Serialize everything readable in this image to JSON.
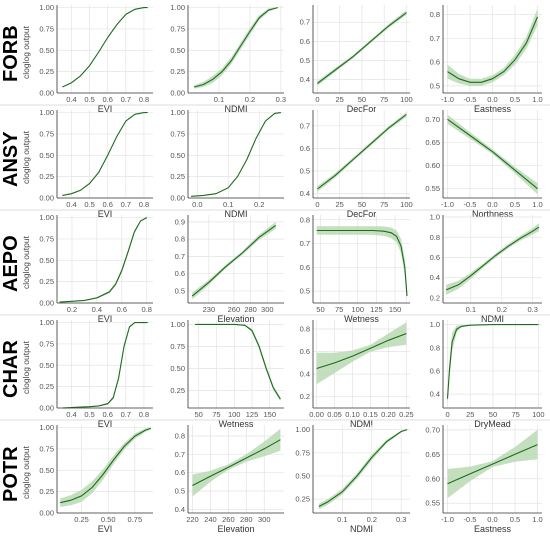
{
  "species": [
    "FORB",
    "ANSY",
    "AEPO",
    "CHAR",
    "POTR"
  ],
  "ylabel": "cloglog output",
  "colors": {
    "line": "#1f6b1f",
    "band": "#b9d9b3",
    "grid": "#e3e3e3",
    "axis": "#333333"
  },
  "chart_data": [
    {
      "type": "line",
      "xlabel": "EVI",
      "xticks": [
        0.4,
        0.5,
        0.6,
        0.7,
        0.8
      ],
      "xlim": [
        0.32,
        0.85
      ],
      "yticks": [
        0,
        0.25,
        0.5,
        0.75,
        1.0
      ],
      "ytick_labels": [
        "0.00",
        "0.25",
        "0.50",
        "0.75",
        "1.00"
      ],
      "ylim": [
        0,
        1.03
      ],
      "x": [
        0.35,
        0.4,
        0.45,
        0.5,
        0.55,
        0.6,
        0.65,
        0.7,
        0.75,
        0.8,
        0.82
      ],
      "y": [
        0.07,
        0.12,
        0.2,
        0.32,
        0.48,
        0.65,
        0.8,
        0.92,
        0.98,
        1.0,
        1.0
      ],
      "band": [
        0.005,
        0.01,
        0.01,
        0.01,
        0.01,
        0.01,
        0.01,
        0.01,
        0.005,
        0.002,
        0.002
      ]
    },
    {
      "type": "line",
      "xlabel": "NDMI",
      "xticks": [
        0.1,
        0.2,
        0.3
      ],
      "xlim": [
        0.0,
        0.31
      ],
      "yticks": [
        0,
        0.25,
        0.5,
        0.75,
        1.0
      ],
      "ytick_labels": [
        "0.00",
        "0.25",
        "0.50",
        "0.75",
        "1.00"
      ],
      "ylim": [
        0,
        1.03
      ],
      "x": [
        0.02,
        0.05,
        0.08,
        0.11,
        0.14,
        0.17,
        0.2,
        0.23,
        0.26,
        0.29
      ],
      "y": [
        0.07,
        0.1,
        0.16,
        0.25,
        0.38,
        0.55,
        0.72,
        0.88,
        0.97,
        1.0
      ],
      "band": [
        0.02,
        0.03,
        0.04,
        0.04,
        0.04,
        0.04,
        0.04,
        0.03,
        0.02,
        0.005
      ]
    },
    {
      "type": "line",
      "xlabel": "DecFor",
      "xticks": [
        0,
        25,
        50,
        75,
        100
      ],
      "xlim": [
        -5,
        104
      ],
      "yticks": [
        0.4,
        0.5,
        0.6,
        0.7
      ],
      "ytick_labels": [
        "0.4",
        "0.5",
        "0.6",
        "0.7"
      ],
      "ylim": [
        0.33,
        0.79
      ],
      "x": [
        0,
        20,
        40,
        60,
        80,
        100
      ],
      "y": [
        0.38,
        0.45,
        0.52,
        0.6,
        0.68,
        0.75
      ],
      "band": [
        0.012,
        0.01,
        0.008,
        0.008,
        0.01,
        0.012
      ]
    },
    {
      "type": "line",
      "xlabel": "Eastness",
      "xticks": [
        -1.0,
        -0.5,
        0.0,
        0.5,
        1.0
      ],
      "xlim": [
        -1.1,
        1.1
      ],
      "yticks": [
        0.5,
        0.6,
        0.7,
        0.8
      ],
      "ytick_labels": [
        "0.5",
        "0.6",
        "0.7",
        "0.8"
      ],
      "ylim": [
        0.47,
        0.84
      ],
      "x": [
        -1.0,
        -0.75,
        -0.5,
        -0.25,
        0.0,
        0.25,
        0.5,
        0.75,
        1.0
      ],
      "y": [
        0.56,
        0.53,
        0.515,
        0.515,
        0.53,
        0.56,
        0.61,
        0.68,
        0.79
      ],
      "band": [
        0.03,
        0.02,
        0.015,
        0.015,
        0.015,
        0.015,
        0.02,
        0.025,
        0.035
      ]
    },
    {
      "type": "line",
      "xlabel": "EVI",
      "xticks": [
        0.4,
        0.5,
        0.6,
        0.7,
        0.8
      ],
      "xlim": [
        0.32,
        0.85
      ],
      "yticks": [
        0,
        0.25,
        0.5,
        0.75,
        1.0
      ],
      "ytick_labels": [
        "0.00",
        "0.25",
        "0.50",
        "0.75",
        "1.00"
      ],
      "ylim": [
        0,
        1.03
      ],
      "x": [
        0.35,
        0.4,
        0.45,
        0.5,
        0.55,
        0.6,
        0.65,
        0.7,
        0.75,
        0.8,
        0.82
      ],
      "y": [
        0.03,
        0.05,
        0.09,
        0.17,
        0.3,
        0.5,
        0.72,
        0.9,
        0.98,
        1.0,
        1.0
      ],
      "band": [
        0.004,
        0.005,
        0.006,
        0.006,
        0.006,
        0.006,
        0.006,
        0.005,
        0.004,
        0.002,
        0.002
      ]
    },
    {
      "type": "line",
      "xlabel": "NDMI",
      "xticks": [
        0.0,
        0.1,
        0.2
      ],
      "xlim": [
        -0.03,
        0.28
      ],
      "yticks": [
        0,
        0.25,
        0.5,
        0.75,
        1.0
      ],
      "ytick_labels": [
        "0.00",
        "0.25",
        "0.50",
        "0.75",
        "1.00"
      ],
      "ylim": [
        0,
        1.03
      ],
      "x": [
        -0.02,
        0.02,
        0.06,
        0.1,
        0.13,
        0.16,
        0.19,
        0.22,
        0.25,
        0.27
      ],
      "y": [
        0.02,
        0.03,
        0.05,
        0.12,
        0.25,
        0.45,
        0.7,
        0.9,
        0.99,
        1.0
      ],
      "band": [
        0.003,
        0.004,
        0.005,
        0.006,
        0.006,
        0.006,
        0.006,
        0.005,
        0.003,
        0.002
      ]
    },
    {
      "type": "line",
      "xlabel": "DecFor",
      "xticks": [
        0,
        25,
        50,
        75,
        100
      ],
      "xlim": [
        -5,
        104
      ],
      "yticks": [
        0.4,
        0.5,
        0.6,
        0.7
      ],
      "ytick_labels": [
        "0.4",
        "0.5",
        "0.6",
        "0.7"
      ],
      "ylim": [
        0.38,
        0.77
      ],
      "x": [
        0,
        20,
        40,
        60,
        80,
        100
      ],
      "y": [
        0.42,
        0.48,
        0.55,
        0.62,
        0.69,
        0.75
      ],
      "band": [
        0.012,
        0.01,
        0.008,
        0.008,
        0.008,
        0.01
      ]
    },
    {
      "type": "line",
      "xlabel": "Northness",
      "xticks": [
        -1.0,
        -0.5,
        0.0,
        0.5,
        1.0
      ],
      "xlim": [
        -1.1,
        1.1
      ],
      "yticks": [
        0.55,
        0.6,
        0.65,
        0.7
      ],
      "ytick_labels": [
        "0.55",
        "0.60",
        "0.65",
        "0.70"
      ],
      "ylim": [
        0.53,
        0.72
      ],
      "x": [
        -1.0,
        -0.5,
        0.0,
        0.5,
        1.0
      ],
      "y": [
        0.7,
        0.665,
        0.63,
        0.59,
        0.55
      ],
      "band": [
        0.01,
        0.007,
        0.005,
        0.007,
        0.012
      ]
    },
    {
      "type": "line",
      "xlabel": "EVI",
      "xticks": [
        0.2,
        0.4,
        0.6,
        0.8
      ],
      "xlim": [
        0.08,
        0.85
      ],
      "yticks": [
        0,
        0.25,
        0.5,
        0.75,
        1.0
      ],
      "ytick_labels": [
        "0.00",
        "0.25",
        "0.50",
        "0.75",
        "1.00"
      ],
      "ylim": [
        0,
        1.03
      ],
      "x": [
        0.1,
        0.2,
        0.3,
        0.4,
        0.5,
        0.55,
        0.6,
        0.65,
        0.7,
        0.75,
        0.8
      ],
      "y": [
        0.01,
        0.02,
        0.03,
        0.06,
        0.13,
        0.22,
        0.38,
        0.6,
        0.83,
        0.96,
        1.0
      ],
      "band": [
        0.003,
        0.004,
        0.006,
        0.01,
        0.015,
        0.02,
        0.025,
        0.025,
        0.02,
        0.01,
        0.005
      ]
    },
    {
      "type": "line",
      "xlabel": "Elevation",
      "xticks": [
        230,
        260,
        280,
        300
      ],
      "xlim": [
        205,
        320
      ],
      "yticks": [
        0.5,
        0.6,
        0.7,
        0.8,
        0.9
      ],
      "ytick_labels": [
        "0.5",
        "0.6",
        "0.7",
        "0.8",
        "0.9"
      ],
      "ylim": [
        0.43,
        0.94
      ],
      "x": [
        210,
        230,
        250,
        270,
        290,
        310
      ],
      "y": [
        0.47,
        0.55,
        0.64,
        0.72,
        0.81,
        0.88
      ],
      "band": [
        0.02,
        0.015,
        0.01,
        0.01,
        0.015,
        0.02
      ]
    },
    {
      "type": "line",
      "xlabel": "Wetness",
      "xticks": [
        50,
        75,
        100,
        125,
        150
      ],
      "xlim": [
        40,
        170
      ],
      "yticks": [
        0.5,
        0.6,
        0.7,
        0.8
      ],
      "ytick_labels": [
        "0.5",
        "0.6",
        "0.7",
        "0.8"
      ],
      "ylim": [
        0.45,
        0.82
      ],
      "x": [
        45,
        60,
        80,
        100,
        120,
        135,
        145,
        152,
        158,
        163,
        166
      ],
      "y": [
        0.755,
        0.755,
        0.755,
        0.755,
        0.755,
        0.752,
        0.745,
        0.73,
        0.69,
        0.6,
        0.48
      ],
      "band": [
        0.018,
        0.018,
        0.018,
        0.018,
        0.018,
        0.02,
        0.022,
        0.025,
        0.03,
        0.035,
        0.04
      ]
    },
    {
      "type": "line",
      "xlabel": "NDMI",
      "xticks": [
        0.1,
        0.2,
        0.3
      ],
      "xlim": [
        0.01,
        0.33
      ],
      "yticks": [
        0.2,
        0.4,
        0.6,
        0.8,
        1.0
      ],
      "ytick_labels": [
        "0.2",
        "0.4",
        "0.6",
        "0.8",
        "1.0"
      ],
      "ylim": [
        0.15,
        1.02
      ],
      "x": [
        0.02,
        0.06,
        0.1,
        0.14,
        0.18,
        0.22,
        0.26,
        0.3,
        0.32
      ],
      "y": [
        0.28,
        0.33,
        0.42,
        0.52,
        0.62,
        0.71,
        0.79,
        0.86,
        0.9
      ],
      "band": [
        0.05,
        0.04,
        0.03,
        0.02,
        0.02,
        0.02,
        0.025,
        0.03,
        0.04
      ]
    },
    {
      "type": "line",
      "xlabel": "EVI",
      "xticks": [
        0.4,
        0.5,
        0.6,
        0.7,
        0.8
      ],
      "xlim": [
        0.32,
        0.85
      ],
      "yticks": [
        0,
        0.25,
        0.5,
        0.75,
        1.0
      ],
      "ytick_labels": [
        "0.00",
        "0.25",
        "0.50",
        "0.75",
        "1.00"
      ],
      "ylim": [
        0,
        1.03
      ],
      "x": [
        0.35,
        0.4,
        0.45,
        0.5,
        0.55,
        0.6,
        0.63,
        0.66,
        0.69,
        0.72,
        0.75,
        0.8,
        0.82
      ],
      "y": [
        0.0,
        0.005,
        0.01,
        0.015,
        0.025,
        0.05,
        0.12,
        0.35,
        0.72,
        0.95,
        1.0,
        1.0,
        1.0
      ],
      "band": [
        0.002,
        0.002,
        0.003,
        0.004,
        0.006,
        0.01,
        0.02,
        0.03,
        0.03,
        0.015,
        0.005,
        0.002,
        0.002
      ]
    },
    {
      "type": "line",
      "xlabel": "Wetness",
      "xticks": [
        50,
        75,
        100,
        125,
        150
      ],
      "xlim": [
        35,
        170
      ],
      "yticks": [
        0.25,
        0.5,
        0.75,
        1.0
      ],
      "ytick_labels": [
        "0.25",
        "0.50",
        "0.75",
        "1.00"
      ],
      "ylim": [
        0.05,
        1.05
      ],
      "x": [
        45,
        60,
        80,
        100,
        115,
        125,
        135,
        145,
        155,
        165
      ],
      "y": [
        1.0,
        1.0,
        1.0,
        1.0,
        0.99,
        0.93,
        0.75,
        0.5,
        0.28,
        0.15
      ],
      "band": [
        0.003,
        0.003,
        0.003,
        0.003,
        0.006,
        0.02,
        0.03,
        0.03,
        0.025,
        0.02
      ]
    },
    {
      "type": "line",
      "xlabel": "NDMI",
      "xticks": [
        0.0,
        0.05,
        0.1,
        0.15,
        0.2,
        0.25
      ],
      "xlim": [
        -0.01,
        0.26
      ],
      "yticks": [
        0.2,
        0.4,
        0.6,
        0.8
      ],
      "ytick_labels": [
        "0.2",
        "0.4",
        "0.6",
        "0.8"
      ],
      "ylim": [
        0.1,
        0.88
      ],
      "x": [
        0.0,
        0.05,
        0.1,
        0.15,
        0.2,
        0.25
      ],
      "y": [
        0.45,
        0.5,
        0.56,
        0.63,
        0.7,
        0.76
      ],
      "band": [
        0.14,
        0.09,
        0.05,
        0.03,
        0.06,
        0.1
      ]
    },
    {
      "type": "line",
      "xlabel": "DryMead",
      "xticks": [
        0,
        25,
        50,
        75,
        100
      ],
      "xlim": [
        -5,
        104
      ],
      "yticks": [
        0.4,
        0.6,
        0.8,
        1.0
      ],
      "ytick_labels": [
        "0.4",
        "0.6",
        "0.8",
        "1.0"
      ],
      "ylim": [
        0.28,
        1.04
      ],
      "x": [
        0,
        2,
        5,
        10,
        15,
        25,
        50,
        75,
        100
      ],
      "y": [
        0.36,
        0.6,
        0.85,
        0.96,
        0.985,
        0.995,
        1.0,
        1.0,
        1.0
      ],
      "band": [
        0.04,
        0.08,
        0.08,
        0.03,
        0.01,
        0.003,
        0.002,
        0.002,
        0.002
      ]
    },
    {
      "type": "line",
      "xlabel": "EVI",
      "xticks": [
        0.25,
        0.5,
        0.75
      ],
      "xlim": [
        0.02,
        0.92
      ],
      "yticks": [
        0,
        0.25,
        0.5,
        0.75,
        1.0
      ],
      "ytick_labels": [
        "0.00",
        "0.25",
        "0.50",
        "0.75",
        "1.00"
      ],
      "ylim": [
        0,
        1.03
      ],
      "x": [
        0.05,
        0.15,
        0.25,
        0.35,
        0.45,
        0.55,
        0.65,
        0.75,
        0.85,
        0.9
      ],
      "y": [
        0.12,
        0.15,
        0.2,
        0.3,
        0.45,
        0.62,
        0.78,
        0.9,
        0.97,
        0.99
      ],
      "band": [
        0.05,
        0.06,
        0.07,
        0.07,
        0.06,
        0.05,
        0.04,
        0.03,
        0.02,
        0.01
      ]
    },
    {
      "type": "line",
      "xlabel": "Elevation",
      "xticks": [
        220,
        240,
        260,
        280,
        300
      ],
      "xlim": [
        215,
        322
      ],
      "yticks": [
        0.4,
        0.5,
        0.6,
        0.7,
        0.8
      ],
      "ytick_labels": [
        "0.4",
        "0.5",
        "0.6",
        "0.7",
        "0.8"
      ],
      "ylim": [
        0.38,
        0.86
      ],
      "x": [
        220,
        240,
        260,
        280,
        300,
        318
      ],
      "y": [
        0.53,
        0.58,
        0.63,
        0.68,
        0.73,
        0.78
      ],
      "band": [
        0.06,
        0.03,
        0.015,
        0.02,
        0.04,
        0.06
      ]
    },
    {
      "type": "line",
      "xlabel": "NDMI",
      "xticks": [
        0.1,
        0.2,
        0.3
      ],
      "xlim": [
        0.0,
        0.33
      ],
      "yticks": [
        0.25,
        0.5,
        0.75,
        1.0
      ],
      "ytick_labels": [
        "0.25",
        "0.50",
        "0.75",
        "1.00"
      ],
      "ylim": [
        0.1,
        1.05
      ],
      "x": [
        0.02,
        0.05,
        0.1,
        0.15,
        0.2,
        0.25,
        0.3,
        0.32
      ],
      "y": [
        0.17,
        0.22,
        0.33,
        0.5,
        0.7,
        0.87,
        0.98,
        1.0
      ],
      "band": [
        0.03,
        0.03,
        0.03,
        0.03,
        0.03,
        0.02,
        0.01,
        0.005
      ]
    },
    {
      "type": "line",
      "xlabel": "Eastness",
      "xticks": [
        -1.0,
        -0.5,
        0.0,
        0.5,
        1.0
      ],
      "xlim": [
        -1.1,
        1.1
      ],
      "yticks": [
        0.55,
        0.6,
        0.65,
        0.7
      ],
      "ytick_labels": [
        "0.55",
        "0.60",
        "0.65",
        "0.70"
      ],
      "ylim": [
        0.53,
        0.71
      ],
      "x": [
        -1.0,
        -0.5,
        0.0,
        0.5,
        1.0
      ],
      "y": [
        0.59,
        0.61,
        0.63,
        0.65,
        0.67
      ],
      "band": [
        0.03,
        0.015,
        0.006,
        0.015,
        0.03
      ]
    }
  ]
}
